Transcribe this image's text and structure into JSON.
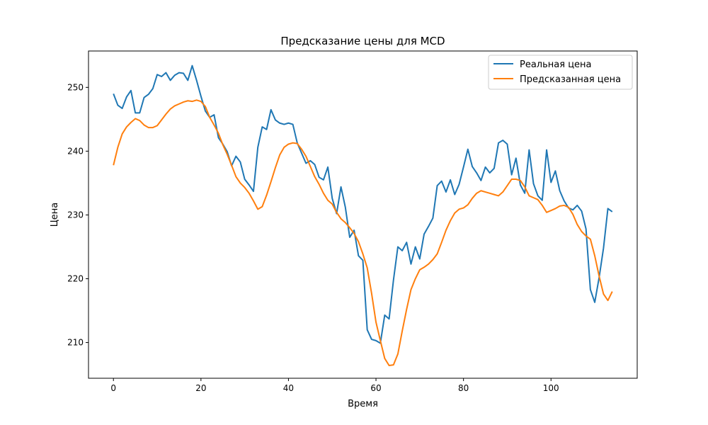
{
  "chart_data": {
    "type": "line",
    "title": "Предсказание цены для MCD",
    "xlabel": "Время",
    "ylabel": "Цена",
    "xlim": [
      -5.7,
      119.7
    ],
    "ylim": [
      204.4,
      255.7
    ],
    "xticks": [
      0,
      20,
      40,
      60,
      80,
      100
    ],
    "yticks": [
      210,
      220,
      230,
      240,
      250
    ],
    "grid": false,
    "legend_position": "top-right",
    "series": [
      {
        "name": "Реальная цена",
        "color": "#1f77b4",
        "x": [
          0,
          1,
          2,
          3,
          4,
          5,
          6,
          7,
          8,
          9,
          10,
          11,
          12,
          13,
          14,
          15,
          16,
          17,
          18,
          19,
          20,
          21,
          22,
          23,
          24,
          25,
          26,
          27,
          28,
          29,
          30,
          31,
          32,
          33,
          34,
          35,
          36,
          37,
          38,
          39,
          40,
          41,
          42,
          43,
          44,
          45,
          46,
          47,
          48,
          49,
          50,
          51,
          52,
          53,
          54,
          55,
          56,
          57,
          58,
          59,
          60,
          61,
          62,
          63,
          64,
          65,
          66,
          67,
          68,
          69,
          70,
          71,
          72,
          73,
          74,
          75,
          76,
          77,
          78,
          79,
          80,
          81,
          82,
          83,
          84,
          85,
          86,
          87,
          88,
          89,
          90,
          91,
          92,
          93,
          94,
          95,
          96,
          97,
          98,
          99,
          100,
          101,
          102,
          103,
          104,
          105,
          106,
          107,
          108,
          109,
          110,
          111,
          112,
          113,
          114
        ],
        "values": [
          249.0,
          247.2,
          246.7,
          248.5,
          249.5,
          246.0,
          246.0,
          248.4,
          248.9,
          249.8,
          252.0,
          251.7,
          252.3,
          251.1,
          251.9,
          252.3,
          252.2,
          251.1,
          253.4,
          251.1,
          248.6,
          246.3,
          245.3,
          245.7,
          242.1,
          241.1,
          239.9,
          237.7,
          239.2,
          238.3,
          235.6,
          234.7,
          233.7,
          240.6,
          243.8,
          243.4,
          246.5,
          244.9,
          244.4,
          244.2,
          244.4,
          244.2,
          241.3,
          239.7,
          238.1,
          238.5,
          237.9,
          235.9,
          235.5,
          237.5,
          232.6,
          230.2,
          234.4,
          231.2,
          226.5,
          227.6,
          223.6,
          222.9,
          212.0,
          210.5,
          210.3,
          209.9,
          214.3,
          213.7,
          219.8,
          225.0,
          224.4,
          225.7,
          222.3,
          225.0,
          223.1,
          227.0,
          228.2,
          229.5,
          234.6,
          235.3,
          233.6,
          235.5,
          233.2,
          234.8,
          237.5,
          240.3,
          237.6,
          236.6,
          235.4,
          237.5,
          236.6,
          237.3,
          241.3,
          241.7,
          241.1,
          236.3,
          238.9,
          234.7,
          233.4,
          240.2,
          234.9,
          233.0,
          232.3,
          240.2,
          235.1,
          236.9,
          233.8,
          232.2,
          231.1,
          230.8,
          231.5,
          230.6,
          227.8,
          218.3,
          216.3,
          220.2,
          224.8,
          231.0,
          230.5
        ]
      },
      {
        "name": "Предсказанная цена",
        "color": "#ff7f0e",
        "x": [
          0,
          1,
          2,
          3,
          4,
          5,
          6,
          7,
          8,
          9,
          10,
          11,
          12,
          13,
          14,
          15,
          16,
          17,
          18,
          19,
          20,
          21,
          22,
          23,
          24,
          25,
          26,
          27,
          28,
          29,
          30,
          31,
          32,
          33,
          34,
          35,
          36,
          37,
          38,
          39,
          40,
          41,
          42,
          43,
          44,
          45,
          46,
          47,
          48,
          49,
          50,
          51,
          52,
          53,
          54,
          55,
          56,
          57,
          58,
          59,
          60,
          61,
          62,
          63,
          64,
          65,
          66,
          67,
          68,
          69,
          70,
          71,
          72,
          73,
          74,
          75,
          76,
          77,
          78,
          79,
          80,
          81,
          82,
          83,
          84,
          85,
          86,
          87,
          88,
          89,
          90,
          91,
          92,
          93,
          94,
          95,
          96,
          97,
          98,
          99,
          100,
          101,
          102,
          103,
          104,
          105,
          106,
          107,
          108,
          109,
          110,
          111,
          112,
          113,
          114
        ],
        "values": [
          237.8,
          240.6,
          242.7,
          243.8,
          244.5,
          245.1,
          244.8,
          244.1,
          243.7,
          243.7,
          244.0,
          244.9,
          245.8,
          246.6,
          247.1,
          247.4,
          247.7,
          247.9,
          247.8,
          248.0,
          247.8,
          247.0,
          245.3,
          244.1,
          242.8,
          241.0,
          239.5,
          237.8,
          236.0,
          235.0,
          234.3,
          233.4,
          232.2,
          230.9,
          231.3,
          233.1,
          235.2,
          237.4,
          239.4,
          240.6,
          241.1,
          241.3,
          241.2,
          240.3,
          239.2,
          237.6,
          236.0,
          234.8,
          233.4,
          232.3,
          231.7,
          230.4,
          229.4,
          228.8,
          228.0,
          227.1,
          225.8,
          223.9,
          221.7,
          217.7,
          213.2,
          210.3,
          207.5,
          206.4,
          206.5,
          208.2,
          211.8,
          215.2,
          218.3,
          220.0,
          221.4,
          221.8,
          222.3,
          223.0,
          223.9,
          225.7,
          227.6,
          229.1,
          230.3,
          230.9,
          231.1,
          231.6,
          232.6,
          233.4,
          233.8,
          233.6,
          233.4,
          233.2,
          233.0,
          233.6,
          234.6,
          235.6,
          235.6,
          235.4,
          234.4,
          233.0,
          232.7,
          232.4,
          231.5,
          230.4,
          230.7,
          231.0,
          231.4,
          231.5,
          231.2,
          230.1,
          228.5,
          227.4,
          226.7,
          226.2,
          223.6,
          220.4,
          217.6,
          216.6,
          218.0
        ]
      }
    ]
  }
}
